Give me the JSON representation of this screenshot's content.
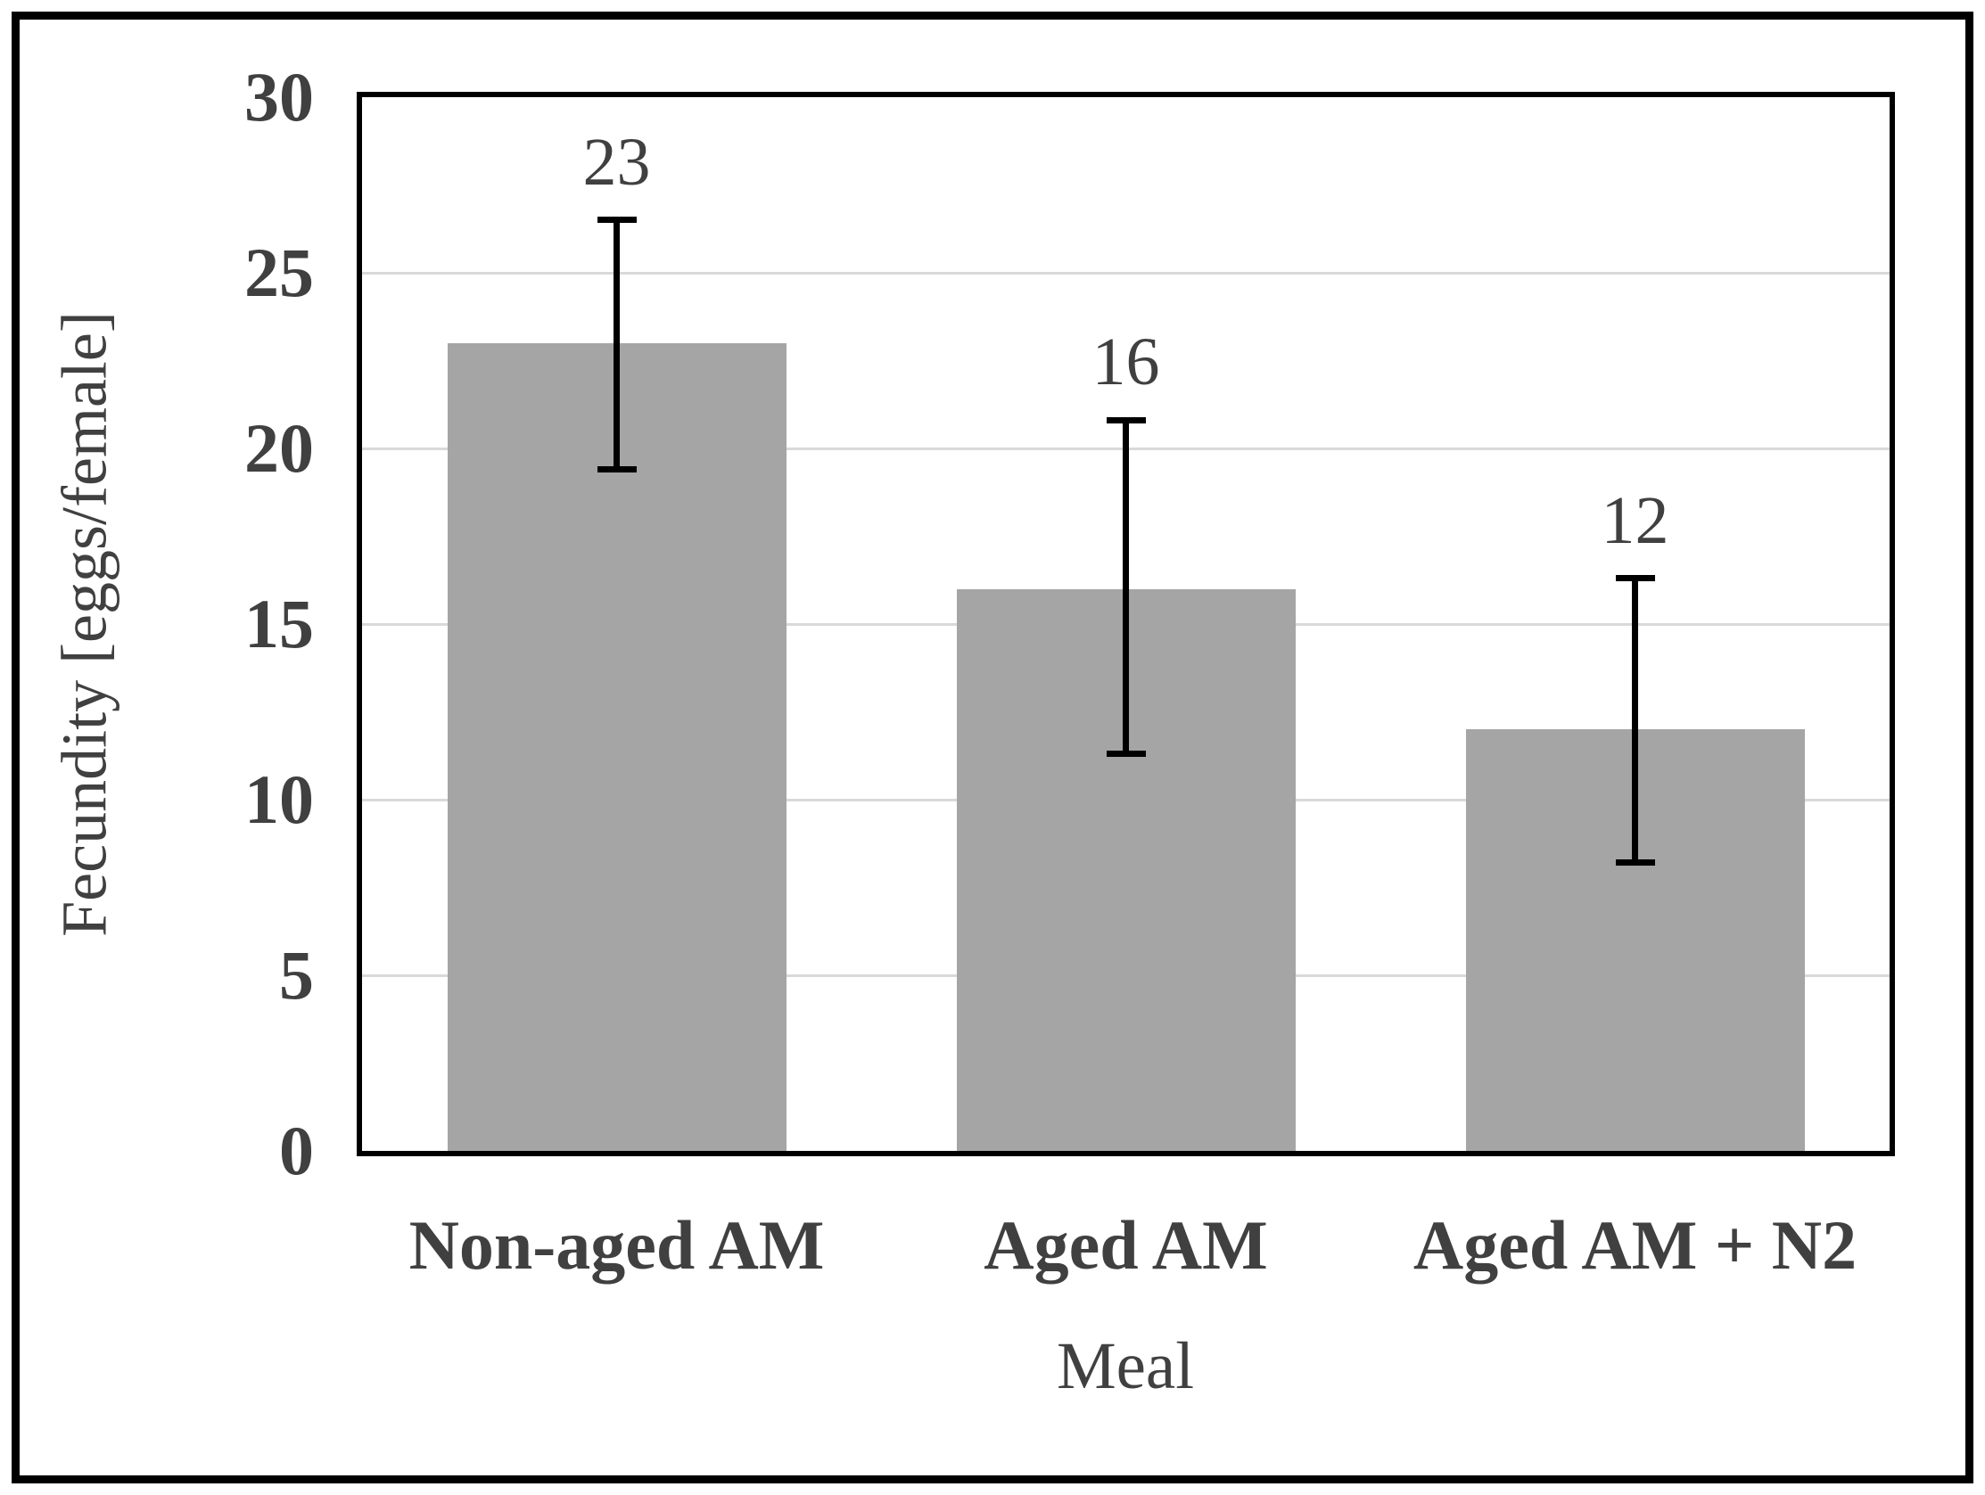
{
  "chart_data": {
    "type": "bar",
    "xlabel": "Meal",
    "ylabel": "Fecundity [eggs/female]",
    "categories": [
      "Non-aged AM",
      "Aged AM",
      "Aged AM + N2"
    ],
    "values": [
      23,
      16,
      12
    ],
    "data_labels": [
      "23",
      "16",
      "12"
    ],
    "error_bars": [
      {
        "low": 19.4,
        "high": 26.5
      },
      {
        "low": 11.3,
        "high": 20.8
      },
      {
        "low": 8.2,
        "high": 16.3
      }
    ],
    "ylim": [
      0,
      30
    ],
    "yticks": [
      0,
      5,
      10,
      15,
      20,
      25,
      30
    ],
    "grid": "horizontal-only",
    "legend": "none",
    "colors": {
      "bar": "#a5a5a5",
      "gridline": "#d9d9d9",
      "axis": "#000000",
      "error": "#000000",
      "text": "#404040",
      "background": "#ffffff"
    }
  }
}
